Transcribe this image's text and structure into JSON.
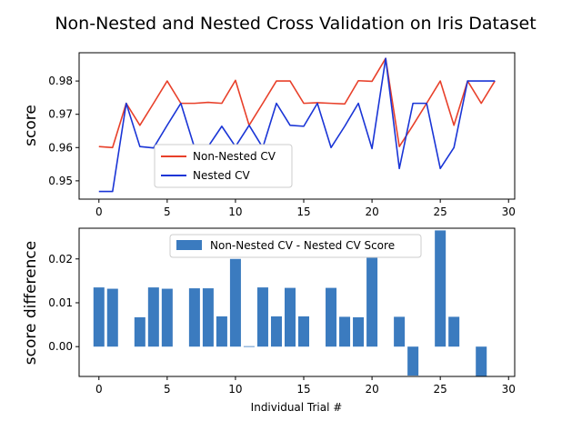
{
  "chart_data": [
    {
      "type": "line",
      "title": "Non-Nested and Nested Cross Validation on Iris Dataset",
      "xlabel": "",
      "ylabel": "score",
      "xlim": [
        -1.45,
        30.45
      ],
      "ylim": [
        0.9445,
        0.9885
      ],
      "xticks": [
        0,
        5,
        10,
        15,
        20,
        25,
        30
      ],
      "yticks": [
        0.95,
        0.96,
        0.97,
        0.98
      ],
      "ytick_labels": [
        "0.95",
        "0.96",
        "0.97",
        "0.98"
      ],
      "legend_position": "lower-left-center",
      "x": [
        0,
        1,
        2,
        3,
        4,
        5,
        6,
        7,
        8,
        9,
        10,
        11,
        12,
        13,
        14,
        15,
        16,
        17,
        18,
        19,
        20,
        21,
        22,
        23,
        24,
        25,
        26,
        27,
        28,
        29
      ],
      "series": [
        {
          "name": "Non-Nested CV",
          "color": "#e8402a",
          "values": [
            0.9603,
            0.96,
            0.9733,
            0.9667,
            0.9733,
            0.98,
            0.9733,
            0.9733,
            0.9736,
            0.9733,
            0.9802,
            0.9667,
            0.9733,
            0.98,
            0.98,
            0.9733,
            0.9735,
            0.9733,
            0.9731,
            0.9801,
            0.9799,
            0.9868,
            0.9603,
            0.9667,
            0.9733,
            0.98,
            0.9667,
            0.98,
            0.9733,
            0.98
          ]
        },
        {
          "name": "Nested CV",
          "color": "#1a35d6",
          "values": [
            0.9468,
            0.9468,
            0.9733,
            0.9603,
            0.9599,
            0.9667,
            0.9733,
            0.96,
            0.9603,
            0.9664,
            0.9603,
            0.9667,
            0.96,
            0.9733,
            0.9667,
            0.9664,
            0.9733,
            0.96,
            0.9664,
            0.9733,
            0.9597,
            0.9868,
            0.9537,
            0.9733,
            0.9733,
            0.9537,
            0.96,
            0.98,
            0.98,
            0.98
          ]
        }
      ]
    },
    {
      "type": "bar",
      "title": "",
      "xlabel": "Individual Trial #",
      "ylabel": "score difference",
      "xlim": [
        -1.45,
        30.45
      ],
      "ylim": [
        -0.0068,
        0.027
      ],
      "xticks": [
        0,
        5,
        10,
        15,
        20,
        25,
        30
      ],
      "yticks": [
        0.0,
        0.01,
        0.02
      ],
      "ytick_labels": [
        "0.00",
        "0.01",
        "0.02"
      ],
      "color": "#3b7bbf",
      "legend": "Non-Nested CV - Nested CV Score",
      "legend_position": "top-center",
      "x": [
        0,
        1,
        2,
        3,
        4,
        5,
        6,
        7,
        8,
        9,
        10,
        11,
        12,
        13,
        14,
        15,
        16,
        17,
        18,
        19,
        20,
        21,
        22,
        23,
        24,
        25,
        26,
        27,
        28,
        29
      ],
      "values": [
        0.0135,
        0.0132,
        0.0,
        0.0067,
        0.0135,
        0.0132,
        0.0,
        0.0133,
        0.0133,
        0.0069,
        0.02,
        0.0001,
        0.0135,
        0.0069,
        0.0134,
        0.0069,
        0.0,
        0.0134,
        0.0068,
        0.0067,
        0.0203,
        0.0,
        0.0068,
        -0.0066,
        0.0,
        0.0265,
        0.0068,
        0.0,
        -0.0067,
        0.0
      ]
    }
  ]
}
